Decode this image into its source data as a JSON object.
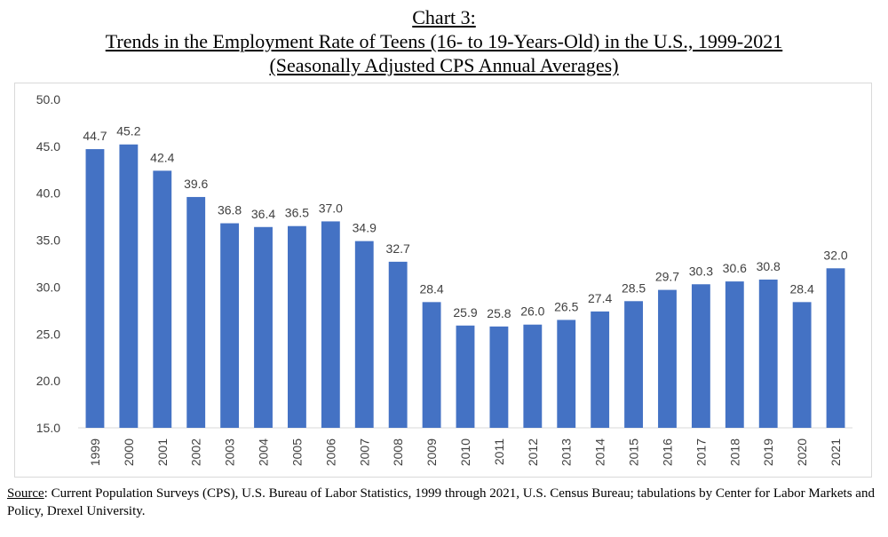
{
  "title": {
    "line1": "Chart 3:",
    "line2": "Trends in the Employment Rate of Teens (16- to 19-Years-Old) in the U.S., 1999-2021",
    "line3": "(Seasonally Adjusted CPS Annual Averages)"
  },
  "chart_data": {
    "type": "bar",
    "title": "Trends in the Employment Rate of Teens (16- to 19-Years-Old) in the U.S., 1999-2021",
    "subtitle": "(Seasonally Adjusted CPS Annual Averages)",
    "xlabel": "",
    "ylabel": "",
    "ylim": [
      15.0,
      50.0
    ],
    "ytick_step": 5,
    "grid": false,
    "legend": "none",
    "bar_color": "#4472C4",
    "categories": [
      "1999",
      "2000",
      "2001",
      "2002",
      "2003",
      "2004",
      "2005",
      "2006",
      "2007",
      "2008",
      "2009",
      "2010",
      "2011",
      "2012",
      "2013",
      "2014",
      "2015",
      "2016",
      "2017",
      "2018",
      "2019",
      "2020",
      "2021"
    ],
    "values": [
      44.7,
      45.2,
      42.4,
      39.6,
      36.8,
      36.4,
      36.5,
      37.0,
      34.9,
      32.7,
      28.4,
      25.9,
      25.8,
      26.0,
      26.5,
      27.4,
      28.5,
      29.7,
      30.3,
      30.6,
      30.8,
      28.4,
      32.0
    ]
  },
  "source": {
    "label": "Source",
    "text": ": Current Population Surveys (CPS), U.S. Bureau of Labor Statistics, 1999 through 2021, U.S. Census Bureau; tabulations by Center for Labor Markets and Policy, Drexel University."
  }
}
